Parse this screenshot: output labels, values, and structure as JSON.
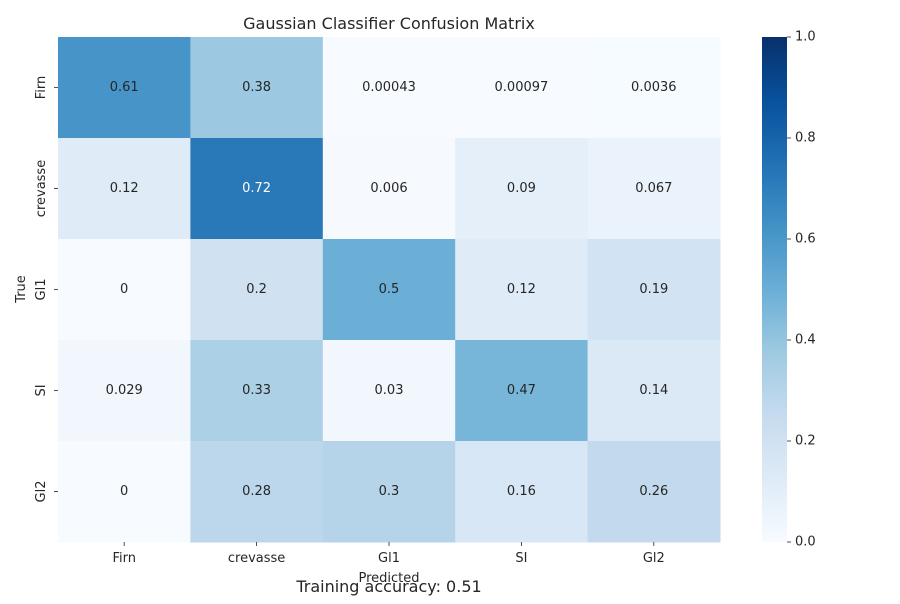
{
  "chart_data": {
    "type": "heatmap",
    "title": "Gaussian Classifier Confusion Matrix",
    "xlabel": "Predicted",
    "ylabel": "True",
    "x_categories": [
      "Firn",
      "crevasse",
      "Gl1",
      "SI",
      "Gl2"
    ],
    "y_categories": [
      "Firn",
      "crevasse",
      "Gl1",
      "SI",
      "Gl2"
    ],
    "values": [
      [
        0.61,
        0.38,
        0.00043,
        0.00097,
        0.0036
      ],
      [
        0.12,
        0.72,
        0.006,
        0.09,
        0.067
      ],
      [
        0,
        0.2,
        0.5,
        0.12,
        0.19
      ],
      [
        0.029,
        0.33,
        0.03,
        0.47,
        0.14
      ],
      [
        0,
        0.28,
        0.3,
        0.16,
        0.26
      ]
    ],
    "cell_labels": [
      [
        "0.61",
        "0.38",
        "0.00043",
        "0.00097",
        "0.0036"
      ],
      [
        "0.12",
        "0.72",
        "0.006",
        "0.09",
        "0.067"
      ],
      [
        "0",
        "0.2",
        "0.5",
        "0.12",
        "0.19"
      ],
      [
        "0.029",
        "0.33",
        "0.03",
        "0.47",
        "0.14"
      ],
      [
        "0",
        "0.28",
        "0.3",
        "0.16",
        "0.26"
      ]
    ],
    "colorbar": {
      "colormap": "Blues",
      "range": [
        0,
        1
      ],
      "ticks": [
        0.0,
        0.2,
        0.4,
        0.6,
        0.8,
        1.0
      ],
      "tick_labels": [
        "0.0",
        "0.2",
        "0.4",
        "0.6",
        "0.8",
        "1.0"
      ]
    },
    "grid": false,
    "legend": "colorbar-right"
  },
  "caption": "Training accuracy: 0.51"
}
